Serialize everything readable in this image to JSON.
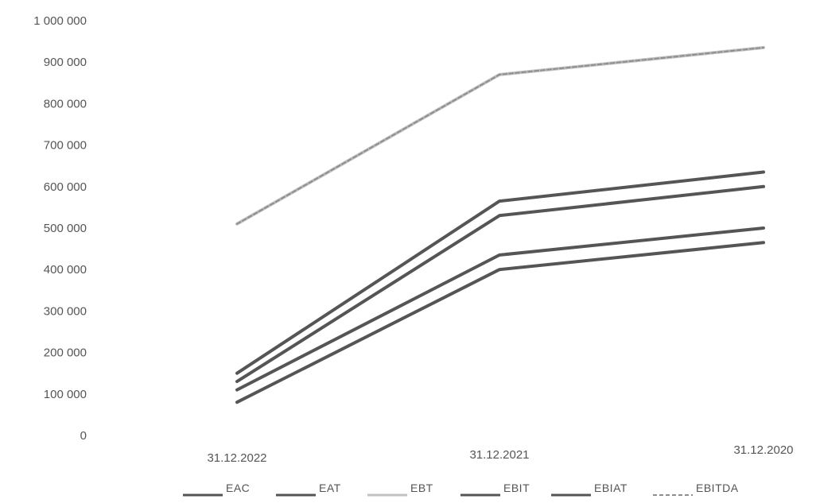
{
  "chart_data": {
    "type": "line",
    "title": "",
    "xlabel": "",
    "ylabel": "",
    "ylim": [
      0,
      1000000
    ],
    "yticks": [
      0,
      100000,
      200000,
      300000,
      400000,
      500000,
      600000,
      700000,
      800000,
      900000,
      1000000
    ],
    "ytick_labels": [
      "0",
      "100 000",
      "200 000",
      "300 000",
      "400 000",
      "500 000",
      "600 000",
      "700 000",
      "800 000",
      "900 000",
      "1 000 000"
    ],
    "grid": false,
    "legend_position": "bottom",
    "categories": [
      "31.12.2022",
      "31.12.2021",
      "31.12.2020"
    ],
    "series": [
      {
        "name": "EAC",
        "color": "#555555",
        "values": [
          80000,
          400000,
          465000
        ]
      },
      {
        "name": "EAT",
        "color": "#555555",
        "values": [
          110000,
          435000,
          500000
        ]
      },
      {
        "name": "EBT",
        "color": "#c2c2c2",
        "values": [
          510000,
          870000,
          935000
        ]
      },
      {
        "name": "EBIT",
        "color": "#555555",
        "values": [
          150000,
          565000,
          635000
        ]
      },
      {
        "name": "EBIAT",
        "color": "#555555",
        "values": [
          130000,
          530000,
          600000
        ]
      },
      {
        "name": "EBITDA",
        "color": "#8f8f8f",
        "dashed": true,
        "values": [
          510000,
          870000,
          935000
        ]
      }
    ]
  }
}
